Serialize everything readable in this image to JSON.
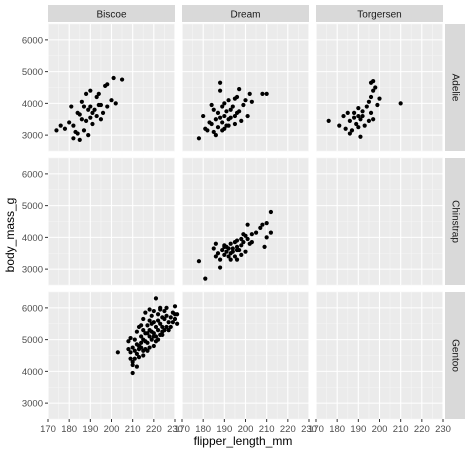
{
  "chart_data": {
    "type": "scatter",
    "xlabel": "flipper_length_mm",
    "ylabel": "body_mass_g",
    "xlim": [
      170,
      230
    ],
    "ylim": [
      2500,
      6500
    ],
    "x_ticks": [
      "170",
      "180",
      "190",
      "200",
      "210",
      "220",
      "230"
    ],
    "y_ticks": [
      "3000",
      "4000",
      "5000",
      "6000"
    ],
    "grid": true,
    "facet_columns": [
      "Biscoe",
      "Dream",
      "Torgersen"
    ],
    "facet_rows": [
      "Adelie",
      "Chinstrap",
      "Gentoo"
    ],
    "colors": {
      "panel": "#ebebeb",
      "grid_major": "#ffffff",
      "strip": "#d9d9d9",
      "point": "#000000"
    },
    "panels": [
      {
        "col": "Biscoe",
        "row": "Adelie",
        "points": [
          [
            174,
            3150
          ],
          [
            176,
            3300
          ],
          [
            178,
            3200
          ],
          [
            180,
            3400
          ],
          [
            181,
            3900
          ],
          [
            182,
            2900
          ],
          [
            183,
            3100
          ],
          [
            184,
            3700
          ],
          [
            185,
            3650
          ],
          [
            185,
            2850
          ],
          [
            186,
            3500
          ],
          [
            187,
            3900
          ],
          [
            187,
            3150
          ],
          [
            188,
            3450
          ],
          [
            189,
            3800
          ],
          [
            189,
            3000
          ],
          [
            190,
            3900
          ],
          [
            190,
            3550
          ],
          [
            191,
            3700
          ],
          [
            191,
            3350
          ],
          [
            192,
            3800
          ],
          [
            193,
            4200
          ],
          [
            193,
            3600
          ],
          [
            194,
            4300
          ],
          [
            195,
            3950
          ],
          [
            195,
            3500
          ],
          [
            196,
            3700
          ],
          [
            198,
            3900
          ],
          [
            198,
            4600
          ],
          [
            200,
            4100
          ],
          [
            201,
            4800
          ],
          [
            202,
            4000
          ],
          [
            205,
            4750
          ],
          [
            188,
            4300
          ],
          [
            184,
            3050
          ],
          [
            182,
            3300
          ],
          [
            186,
            4050
          ],
          [
            190,
            4400
          ],
          [
            194,
            3950
          ],
          [
            197,
            4550
          ]
        ]
      },
      {
        "col": "Dream",
        "row": "Adelie",
        "points": [
          [
            178,
            2900
          ],
          [
            180,
            3600
          ],
          [
            181,
            3200
          ],
          [
            182,
            3150
          ],
          [
            183,
            3400
          ],
          [
            184,
            3350
          ],
          [
            185,
            3100
          ],
          [
            185,
            3800
          ],
          [
            186,
            3500
          ],
          [
            187,
            3250
          ],
          [
            187,
            3700
          ],
          [
            188,
            4650
          ],
          [
            188,
            3550
          ],
          [
            189,
            3400
          ],
          [
            189,
            3900
          ],
          [
            190,
            3200
          ],
          [
            190,
            3600
          ],
          [
            190,
            4000
          ],
          [
            191,
            3300
          ],
          [
            191,
            3750
          ],
          [
            192,
            4100
          ],
          [
            192,
            3500
          ],
          [
            193,
            3550
          ],
          [
            193,
            3800
          ],
          [
            194,
            3900
          ],
          [
            195,
            3600
          ],
          [
            195,
            4150
          ],
          [
            196,
            3700
          ],
          [
            196,
            4200
          ],
          [
            197,
            4450
          ],
          [
            198,
            3450
          ],
          [
            199,
            3950
          ],
          [
            200,
            4100
          ],
          [
            201,
            3600
          ],
          [
            202,
            4300
          ],
          [
            203,
            4050
          ],
          [
            208,
            4300
          ],
          [
            210,
            4300
          ],
          [
            184,
            3950
          ],
          [
            186,
            3000
          ],
          [
            189,
            3150
          ],
          [
            192,
            3300
          ],
          [
            197,
            3750
          ],
          [
            188,
            4400
          ],
          [
            195,
            3350
          ]
        ]
      },
      {
        "col": "Torgersen",
        "row": "Adelie",
        "points": [
          [
            176,
            3450
          ],
          [
            181,
            3300
          ],
          [
            183,
            3600
          ],
          [
            184,
            3200
          ],
          [
            185,
            3700
          ],
          [
            186,
            3450
          ],
          [
            186,
            3050
          ],
          [
            187,
            3150
          ],
          [
            188,
            3550
          ],
          [
            189,
            3350
          ],
          [
            190,
            3850
          ],
          [
            190,
            3250
          ],
          [
            190,
            3600
          ],
          [
            191,
            2950
          ],
          [
            191,
            3500
          ],
          [
            192,
            3750
          ],
          [
            193,
            3300
          ],
          [
            194,
            3900
          ],
          [
            195,
            4050
          ],
          [
            195,
            3450
          ],
          [
            196,
            4650
          ],
          [
            196,
            4200
          ],
          [
            196,
            3700
          ],
          [
            197,
            4700
          ],
          [
            197,
            4400
          ],
          [
            198,
            4500
          ],
          [
            199,
            3950
          ],
          [
            200,
            4150
          ],
          [
            197,
            3500
          ],
          [
            210,
            4000
          ],
          [
            192,
            3600
          ],
          [
            188,
            3700
          ]
        ]
      },
      {
        "col": "Dream",
        "row": "Chinstrap",
        "points": [
          [
            178,
            3250
          ],
          [
            181,
            2700
          ],
          [
            185,
            3650
          ],
          [
            186,
            3400
          ],
          [
            187,
            3500
          ],
          [
            188,
            3300
          ],
          [
            189,
            3600
          ],
          [
            190,
            3450
          ],
          [
            190,
            3750
          ],
          [
            191,
            3550
          ],
          [
            191,
            3700
          ],
          [
            192,
            3400
          ],
          [
            192,
            3650
          ],
          [
            193,
            3800
          ],
          [
            193,
            3500
          ],
          [
            194,
            3650
          ],
          [
            195,
            3850
          ],
          [
            195,
            3400
          ],
          [
            196,
            3700
          ],
          [
            196,
            3900
          ],
          [
            197,
            3600
          ],
          [
            198,
            3950
          ],
          [
            198,
            3750
          ],
          [
            199,
            3850
          ],
          [
            200,
            3550
          ],
          [
            200,
            4050
          ],
          [
            201,
            4400
          ],
          [
            201,
            3950
          ],
          [
            202,
            3800
          ],
          [
            203,
            4100
          ],
          [
            205,
            4150
          ],
          [
            207,
            4300
          ],
          [
            208,
            4400
          ],
          [
            210,
            4450
          ],
          [
            212,
            4800
          ],
          [
            210,
            4000
          ],
          [
            186,
            3800
          ],
          [
            188,
            3050
          ],
          [
            193,
            3300
          ],
          [
            196,
            3300
          ],
          [
            199,
            4100
          ],
          [
            212,
            4150
          ],
          [
            209,
            3700
          ],
          [
            198,
            3450
          ],
          [
            203,
            3850
          ],
          [
            190,
            3700
          ],
          [
            194,
            3550
          ],
          [
            196,
            3600
          ]
        ]
      },
      {
        "col": "Biscoe",
        "row": "Gentoo",
        "points": [
          [
            203,
            4600
          ],
          [
            208,
            4950
          ],
          [
            208,
            4700
          ],
          [
            209,
            4400
          ],
          [
            209,
            4600
          ],
          [
            210,
            3950
          ],
          [
            210,
            4750
          ],
          [
            210,
            4200
          ],
          [
            211,
            4400
          ],
          [
            211,
            5000
          ],
          [
            211,
            4650
          ],
          [
            212,
            4850
          ],
          [
            212,
            4550
          ],
          [
            212,
            5250
          ],
          [
            213,
            4800
          ],
          [
            213,
            4450
          ],
          [
            213,
            5400
          ],
          [
            214,
            4750
          ],
          [
            214,
            5100
          ],
          [
            214,
            4900
          ],
          [
            215,
            5000
          ],
          [
            215,
            4650
          ],
          [
            215,
            5650
          ],
          [
            215,
            5300
          ],
          [
            216,
            4950
          ],
          [
            216,
            5200
          ],
          [
            216,
            4700
          ],
          [
            216,
            5850
          ],
          [
            217,
            4900
          ],
          [
            217,
            5450
          ],
          [
            217,
            5200
          ],
          [
            218,
            5300
          ],
          [
            218,
            4750
          ],
          [
            218,
            5600
          ],
          [
            218,
            5100
          ],
          [
            219,
            5500
          ],
          [
            219,
            5000
          ],
          [
            219,
            5250
          ],
          [
            220,
            5550
          ],
          [
            220,
            5200
          ],
          [
            220,
            4800
          ],
          [
            220,
            5900
          ],
          [
            221,
            5400
          ],
          [
            221,
            5100
          ],
          [
            221,
            6300
          ],
          [
            222,
            5600
          ],
          [
            222,
            5300
          ],
          [
            222,
            5800
          ],
          [
            222,
            5000
          ],
          [
            223,
            5500
          ],
          [
            223,
            5150
          ],
          [
            223,
            5950
          ],
          [
            224,
            5700
          ],
          [
            224,
            5400
          ],
          [
            224,
            5250
          ],
          [
            225,
            5650
          ],
          [
            225,
            5300
          ],
          [
            225,
            5900
          ],
          [
            226,
            5400
          ],
          [
            226,
            5750
          ],
          [
            227,
            5550
          ],
          [
            228,
            5400
          ],
          [
            228,
            5700
          ],
          [
            229,
            5850
          ],
          [
            229,
            5550
          ],
          [
            230,
            5800
          ],
          [
            230,
            6050
          ],
          [
            230,
            5650
          ],
          [
            231,
            5500
          ],
          [
            231,
            5800
          ],
          [
            210,
            4300
          ],
          [
            212,
            4150
          ],
          [
            214,
            5450
          ],
          [
            217,
            4650
          ],
          [
            219,
            5750
          ],
          [
            221,
            4950
          ],
          [
            223,
            6000
          ],
          [
            215,
            4500
          ],
          [
            209,
            5050
          ],
          [
            220,
            5100
          ],
          [
            226,
            6000
          ],
          [
            218,
            5950
          ],
          [
            213,
            4700
          ],
          [
            224,
            5150
          ],
          [
            227,
            5300
          ]
        ]
      }
    ]
  }
}
